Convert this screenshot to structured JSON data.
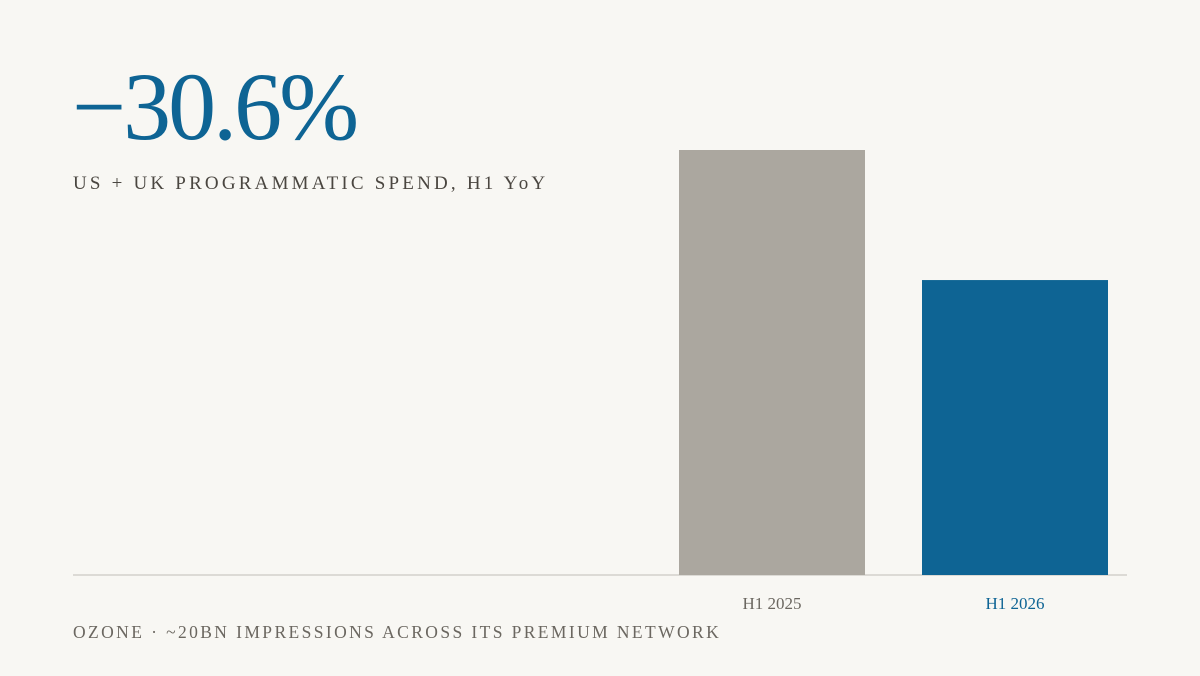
{
  "chart_data": {
    "type": "bar",
    "title": "−30.6%",
    "subtitle": "US + UK PROGRAMMATIC SPEND, H1 YoY",
    "footnote": "OZONE · ~20BN IMPRESSIONS ACROSS ITS PREMIUM NETWORK",
    "categories": [
      "H1 2025",
      "H1 2026"
    ],
    "values": [
      100,
      69.4
    ],
    "colors": [
      "#aba79f",
      "#0e6494"
    ],
    "ylim": [
      0,
      100
    ]
  }
}
